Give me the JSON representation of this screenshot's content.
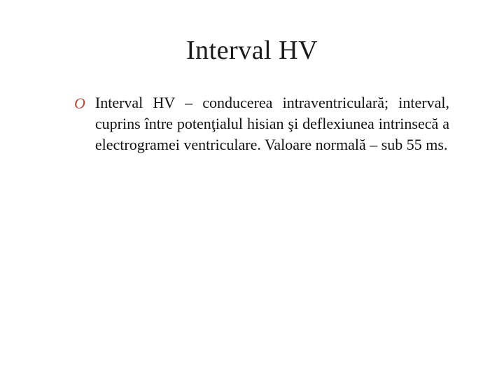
{
  "slide": {
    "title": "Interval HV",
    "bullets": [
      {
        "marker": "O",
        "text": "Interval HV – conducerea intraventriculară; interval, cuprins între potenţialul hisian şi deflexiunea intrinsecă a electrogramei ventriculare. Valoare normală – sub 55 ms."
      }
    ],
    "style": {
      "background_color": "#ffffff",
      "title_color": "#1a1a1a",
      "title_fontsize": 38,
      "body_color": "#111111",
      "body_fontsize": 22,
      "bullet_marker_color": "#b44a3a",
      "font_family": "Times New Roman"
    }
  }
}
